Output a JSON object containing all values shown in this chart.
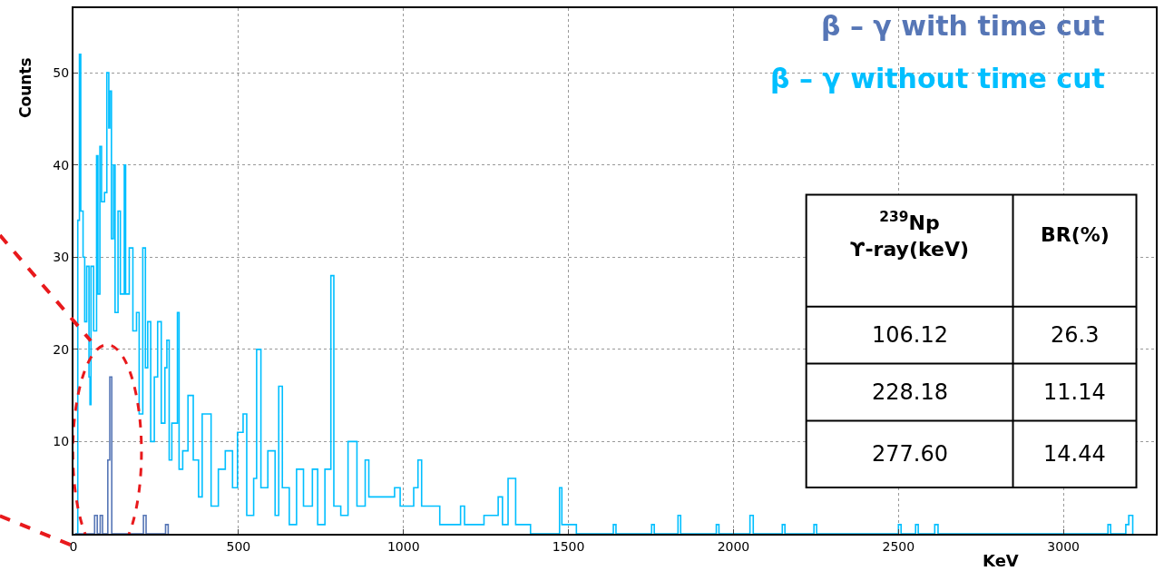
{
  "chart_data": {
    "type": "step",
    "xlabel": "KeV",
    "ylabel": "Counts",
    "xlim": [
      0,
      3280
    ],
    "ylim": [
      0,
      57
    ],
    "xticks": [
      0,
      500,
      1000,
      1500,
      2000,
      2500,
      3000
    ],
    "yticks": [
      10,
      20,
      30,
      40,
      50
    ],
    "grid": true,
    "legend": "top right",
    "series": [
      {
        "name": "β – γ without time cut",
        "color": "#00bfff",
        "x": [
          5,
          13,
          18,
          22,
          29,
          34,
          40,
          47,
          50,
          53,
          61,
          70,
          74,
          80,
          85,
          94,
          101,
          107,
          110,
          115,
          121,
          126,
          135,
          142,
          154,
          158,
          169,
          180,
          191,
          199,
          210,
          218,
          225,
          234,
          245,
          255,
          266,
          277,
          283,
          290,
          298,
          315,
          320,
          331,
          347,
          363,
          379,
          390,
          406,
          417,
          439,
          460,
          482,
          497,
          514,
          525,
          546,
          555,
          559,
          568,
          589,
          611,
          622,
          633,
          654,
          676,
          697,
          724,
          740,
          762,
          780,
          789,
          810,
          832,
          859,
          884,
          895,
          973,
          990,
          1031,
          1044,
          1055,
          1097,
          1110,
          1173,
          1185,
          1244,
          1287,
          1300,
          1317,
          1330,
          1340,
          1377,
          1385,
          1473,
          1480,
          1516,
          1524,
          1636,
          1644,
          1752,
          1760,
          1832,
          1840,
          1948,
          1956,
          2050,
          2060,
          2148,
          2156,
          2244,
          2252,
          2500,
          2508,
          2552,
          2560,
          2610,
          2620,
          3135,
          3143,
          3189,
          3198,
          3210
        ],
        "values": [
          0,
          34,
          52,
          35,
          30,
          23,
          29,
          17,
          14,
          29,
          22,
          41,
          26,
          42,
          36,
          37,
          50,
          44,
          48,
          32,
          40,
          24,
          35,
          26,
          40,
          26,
          31,
          22,
          24,
          13,
          31,
          18,
          23,
          10,
          17,
          23,
          12,
          18,
          21,
          8,
          12,
          24,
          7,
          9,
          15,
          8,
          4,
          13,
          13,
          3,
          7,
          9,
          5,
          11,
          13,
          2,
          6,
          20,
          20,
          5,
          9,
          2,
          16,
          5,
          1,
          7,
          3,
          7,
          1,
          7,
          28,
          3,
          2,
          10,
          3,
          8,
          4,
          5,
          3,
          5,
          8,
          3,
          3,
          1,
          3,
          1,
          2,
          4,
          1,
          6,
          6,
          1,
          1,
          0,
          5,
          1,
          1,
          0,
          1,
          0,
          1,
          0,
          2,
          0,
          1,
          0,
          2,
          0,
          1,
          0,
          1,
          0,
          1,
          0,
          1,
          0,
          1,
          0,
          1,
          0,
          1,
          2,
          0
        ]
      },
      {
        "name": "β – γ with time cut",
        "color": "#5676b6",
        "x": [
          5,
          64,
          72,
          81,
          88,
          104,
          110,
          116,
          212,
          220,
          279,
          287
        ],
        "values": [
          0,
          2,
          0,
          2,
          0,
          8,
          17,
          0,
          2,
          0,
          1,
          0
        ]
      }
    ],
    "annotations": [
      "$^{239}$Np\nϒ-ray(keV)",
      "BR(%)",
      "106.12",
      "26.3",
      "228.18",
      "11.14",
      "277.60",
      "14.44"
    ]
  }
}
